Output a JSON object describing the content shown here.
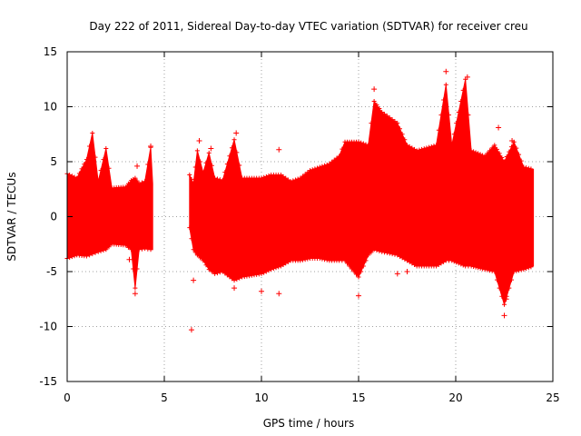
{
  "chart_data": {
    "type": "scatter",
    "title": "Day 222 of 2011, Sidereal Day-to-day VTEC variation (SDTVAR) for receiver creu",
    "xlabel": "GPS time / hours",
    "ylabel": "SDTVAR / TECUs",
    "xlim": [
      0,
      25
    ],
    "ylim": [
      -15,
      15
    ],
    "x_ticks": [
      0,
      5,
      10,
      15,
      20,
      25
    ],
    "y_ticks": [
      -15,
      -10,
      -5,
      0,
      5,
      10,
      15
    ],
    "grid": true,
    "grid_style": "dotted",
    "marker": "+",
    "series": [
      {
        "name": "SDTVAR",
        "color": "#ff0000",
        "envelope": [
          {
            "x": 0.0,
            "lo": -3.8,
            "hi": 3.9
          },
          {
            "x": 0.5,
            "lo": -3.5,
            "hi": 3.5
          },
          {
            "x": 1.0,
            "lo": -3.6,
            "hi": 5.2
          },
          {
            "x": 1.3,
            "lo": -3.4,
            "hi": 7.6
          },
          {
            "x": 1.6,
            "lo": -3.2,
            "hi": 3.2
          },
          {
            "x": 2.0,
            "lo": -3.0,
            "hi": 6.2
          },
          {
            "x": 2.3,
            "lo": -2.5,
            "hi": 2.6
          },
          {
            "x": 3.0,
            "lo": -2.6,
            "hi": 2.7
          },
          {
            "x": 3.3,
            "lo": -3.0,
            "hi": 3.3
          },
          {
            "x": 3.5,
            "lo": -6.5,
            "hi": 3.5
          },
          {
            "x": 3.7,
            "lo": -3.0,
            "hi": 3.0
          },
          {
            "x": 4.0,
            "lo": -2.9,
            "hi": 3.2
          },
          {
            "x": 4.3,
            "lo": -3.0,
            "hi": 6.3
          },
          {
            "x": 4.4,
            "lo": -3.0,
            "hi": 3.0
          },
          {
            "x": 4.5,
            "lo": null,
            "hi": null
          },
          {
            "x": 6.3,
            "lo": -1.0,
            "hi": 3.8
          },
          {
            "x": 6.5,
            "lo": -3.0,
            "hi": 3.0
          },
          {
            "x": 6.7,
            "lo": -3.5,
            "hi": 6.0
          },
          {
            "x": 7.0,
            "lo": -4.0,
            "hi": 4.0
          },
          {
            "x": 7.3,
            "lo": -4.8,
            "hi": 5.8
          },
          {
            "x": 7.6,
            "lo": -5.2,
            "hi": 3.5
          },
          {
            "x": 8.0,
            "lo": -5.0,
            "hi": 3.3
          },
          {
            "x": 8.6,
            "lo": -5.8,
            "hi": 7.0
          },
          {
            "x": 9.0,
            "lo": -5.5,
            "hi": 3.5
          },
          {
            "x": 10.0,
            "lo": -5.2,
            "hi": 3.5
          },
          {
            "x": 10.5,
            "lo": -4.8,
            "hi": 3.8
          },
          {
            "x": 11.0,
            "lo": -4.5,
            "hi": 3.8
          },
          {
            "x": 11.5,
            "lo": -4.0,
            "hi": 3.2
          },
          {
            "x": 12.0,
            "lo": -4.0,
            "hi": 3.5
          },
          {
            "x": 12.5,
            "lo": -3.8,
            "hi": 4.2
          },
          {
            "x": 13.0,
            "lo": -3.8,
            "hi": 4.5
          },
          {
            "x": 13.5,
            "lo": -4.0,
            "hi": 4.8
          },
          {
            "x": 14.0,
            "lo": -4.0,
            "hi": 5.5
          },
          {
            "x": 14.3,
            "lo": -4.0,
            "hi": 6.8
          },
          {
            "x": 15.0,
            "lo": -5.5,
            "hi": 6.8
          },
          {
            "x": 15.5,
            "lo": -3.5,
            "hi": 6.5
          },
          {
            "x": 15.8,
            "lo": -3.0,
            "hi": 10.5
          },
          {
            "x": 16.2,
            "lo": -3.2,
            "hi": 9.5
          },
          {
            "x": 17.0,
            "lo": -3.5,
            "hi": 8.5
          },
          {
            "x": 17.5,
            "lo": -4.0,
            "hi": 6.5
          },
          {
            "x": 18.0,
            "lo": -4.5,
            "hi": 6.0
          },
          {
            "x": 19.0,
            "lo": -4.5,
            "hi": 6.5
          },
          {
            "x": 19.5,
            "lo": -4.0,
            "hi": 12.0
          },
          {
            "x": 19.8,
            "lo": -4.0,
            "hi": 6.5
          },
          {
            "x": 20.5,
            "lo": -4.5,
            "hi": 12.5
          },
          {
            "x": 20.8,
            "lo": -4.5,
            "hi": 6.0
          },
          {
            "x": 21.5,
            "lo": -4.8,
            "hi": 5.5
          },
          {
            "x": 22.0,
            "lo": -5.0,
            "hi": 6.5
          },
          {
            "x": 22.5,
            "lo": -8.0,
            "hi": 5.0
          },
          {
            "x": 23.0,
            "lo": -5.0,
            "hi": 6.8
          },
          {
            "x": 23.5,
            "lo": -4.8,
            "hi": 4.5
          },
          {
            "x": 24.0,
            "lo": -4.5,
            "hi": 4.3
          }
        ],
        "outliers": [
          {
            "x": 3.2,
            "y": -3.9
          },
          {
            "x": 3.5,
            "y": -7.0
          },
          {
            "x": 3.6,
            "y": 4.6
          },
          {
            "x": 4.3,
            "y": 6.4
          },
          {
            "x": 6.4,
            "y": -10.3
          },
          {
            "x": 6.5,
            "y": -5.8
          },
          {
            "x": 6.8,
            "y": 6.9
          },
          {
            "x": 7.4,
            "y": 6.2
          },
          {
            "x": 8.6,
            "y": -6.5
          },
          {
            "x": 8.7,
            "y": 7.6
          },
          {
            "x": 10.0,
            "y": -6.8
          },
          {
            "x": 10.9,
            "y": 6.1
          },
          {
            "x": 10.9,
            "y": -7.0
          },
          {
            "x": 15.0,
            "y": -7.2
          },
          {
            "x": 15.8,
            "y": 11.6
          },
          {
            "x": 17.0,
            "y": -5.2
          },
          {
            "x": 17.5,
            "y": -5.0
          },
          {
            "x": 19.5,
            "y": 13.2
          },
          {
            "x": 20.6,
            "y": 12.7
          },
          {
            "x": 22.2,
            "y": 8.1
          },
          {
            "x": 22.5,
            "y": -9.0
          },
          {
            "x": 22.6,
            "y": -7.5
          },
          {
            "x": 22.9,
            "y": 6.9
          }
        ]
      }
    ]
  }
}
